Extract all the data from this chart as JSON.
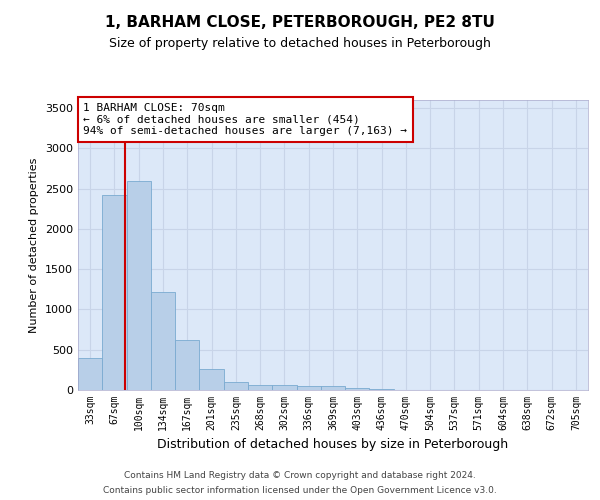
{
  "title": "1, BARHAM CLOSE, PETERBOROUGH, PE2 8TU",
  "subtitle": "Size of property relative to detached houses in Peterborough",
  "xlabel": "Distribution of detached houses by size in Peterborough",
  "ylabel": "Number of detached properties",
  "bar_color": "#b8cfe8",
  "bar_edge_color": "#7aaad0",
  "background_color": "#ffffff",
  "grid_color": "#c8d4e8",
  "plot_bg_color": "#dce8f8",
  "annotation_line_color": "#cc0000",
  "annotation_box_color": "#cc0000",
  "annotation_text": "1 BARHAM CLOSE: 70sqm\n← 6% of detached houses are smaller (454)\n94% of semi-detached houses are larger (7,163) →",
  "categories": [
    "33sqm",
    "67sqm",
    "100sqm",
    "134sqm",
    "167sqm",
    "201sqm",
    "235sqm",
    "268sqm",
    "302sqm",
    "336sqm",
    "369sqm",
    "403sqm",
    "436sqm",
    "470sqm",
    "504sqm",
    "537sqm",
    "571sqm",
    "604sqm",
    "638sqm",
    "672sqm",
    "705sqm"
  ],
  "values": [
    400,
    2420,
    2600,
    1220,
    620,
    255,
    105,
    65,
    60,
    55,
    55,
    30,
    10,
    5,
    3,
    2,
    2,
    1,
    1,
    1,
    1
  ],
  "ylim": [
    0,
    3600
  ],
  "yticks": [
    0,
    500,
    1000,
    1500,
    2000,
    2500,
    3000,
    3500
  ],
  "footer_line1": "Contains HM Land Registry data © Crown copyright and database right 2024.",
  "footer_line2": "Contains public sector information licensed under the Open Government Licence v3.0.",
  "bar_width": 1.0,
  "red_line_x": 1.45
}
